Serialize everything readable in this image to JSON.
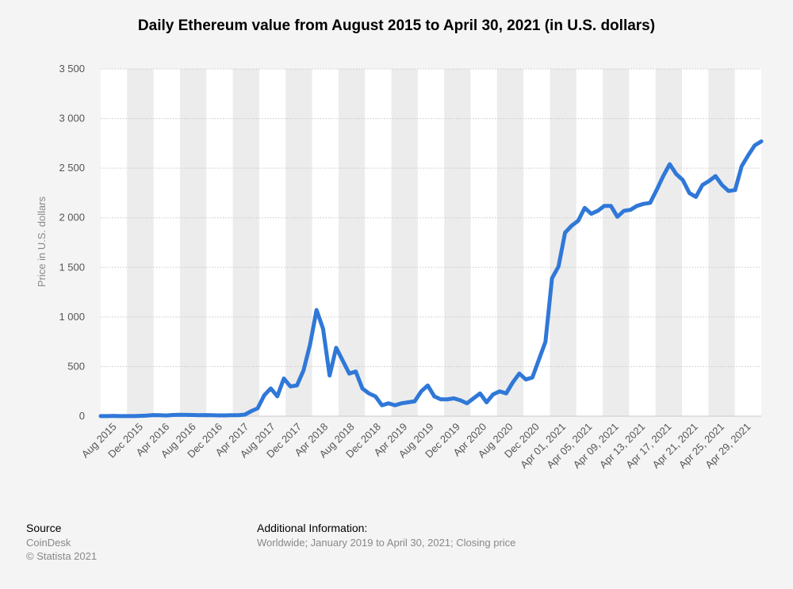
{
  "chart_data": {
    "type": "line",
    "title": "Daily Ethereum value from August 2015 to April 30, 2021 (in U.S. dollars)",
    "xlabel": "",
    "ylabel": "Price in U.S. dollars",
    "ylim": [
      0,
      3500
    ],
    "yticks": [
      0,
      500,
      1000,
      1500,
      2000,
      2500,
      3000,
      3500
    ],
    "ytick_labels": [
      "0",
      "500",
      "1 000",
      "1 500",
      "2 000",
      "2 500",
      "3 000",
      "3 500"
    ],
    "grid": true,
    "line_color": "#2f78d8",
    "xtick_labels": [
      "Aug 2015",
      "Dec 2015",
      "Apr 2016",
      "Aug 2016",
      "Dec 2016",
      "Apr 2017",
      "Aug 2017",
      "Dec 2017",
      "Apr 2018",
      "Aug 2018",
      "Dec 2018",
      "Apr 2019",
      "Aug 2019",
      "Dec 2019",
      "Apr 2020",
      "Aug 2020",
      "Dec 2020",
      "Apr 01, 2021",
      "Apr 05, 2021",
      "Apr 09, 2021",
      "Apr 13, 2021",
      "Apr 17, 2021",
      "Apr 21, 2021",
      "Apr 25, 2021",
      "Apr 29, 2021"
    ],
    "series": [
      {
        "name": "Closing price",
        "values": [
          1,
          1,
          3,
          1,
          1,
          1,
          3,
          6,
          11,
          10,
          7,
          12,
          14,
          13,
          12,
          10,
          11,
          10,
          8,
          8,
          10,
          10,
          15,
          50,
          80,
          210,
          280,
          200,
          380,
          300,
          310,
          460,
          720,
          1070,
          880,
          410,
          690,
          560,
          430,
          450,
          280,
          230,
          200,
          110,
          130,
          110,
          130,
          140,
          150,
          250,
          310,
          200,
          170,
          170,
          180,
          160,
          130,
          180,
          230,
          140,
          220,
          250,
          230,
          340,
          430,
          370,
          390,
          570,
          750,
          1390,
          1510,
          1850,
          1920,
          1970,
          2100,
          2040,
          2070,
          2120,
          2120,
          2010,
          2070,
          2080,
          2120,
          2140,
          2150,
          2280,
          2420,
          2540,
          2440,
          2380,
          2250,
          2210,
          2330,
          2370,
          2420,
          2330,
          2270,
          2280,
          2520,
          2630,
          2730,
          2770
        ]
      }
    ]
  },
  "footer": {
    "source_label": "Source",
    "source_name": "CoinDesk",
    "copyright": "© Statista 2021",
    "additional_label": "Additional Information:",
    "additional_text": "Worldwide; January 2019 to April 30, 2021; Closing price"
  }
}
